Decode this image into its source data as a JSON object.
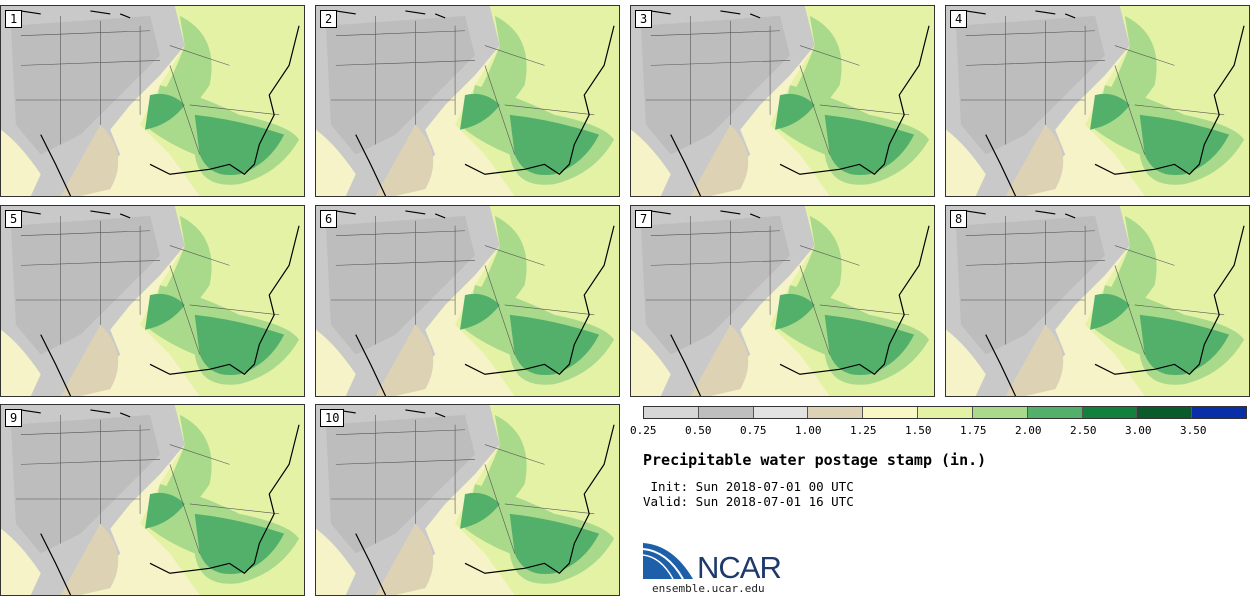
{
  "panels": [
    {
      "label": "1"
    },
    {
      "label": "2"
    },
    {
      "label": "3"
    },
    {
      "label": "4"
    },
    {
      "label": "5"
    },
    {
      "label": "6"
    },
    {
      "label": "7"
    },
    {
      "label": "8"
    },
    {
      "label": "9"
    },
    {
      "label": "10"
    }
  ],
  "legend": {
    "ticks": [
      "0.25",
      "0.50",
      "0.75",
      "1.00",
      "1.25",
      "1.50",
      "1.75",
      "2.00",
      "2.50",
      "3.00",
      "3.50"
    ],
    "colors": [
      "#d6d6d6",
      "#bebebe",
      "#e2e2e2",
      "#ddd2b4",
      "#f9f7c6",
      "#e4f2a6",
      "#a9d98a",
      "#52b06a",
      "#12813b",
      "#0b5a2a",
      "#0a2ea8"
    ]
  },
  "title": "Precipitable water postage stamp (in.)",
  "init": " Init: Sun 2018-07-01 00 UTC",
  "valid": "Valid: Sun 2018-07-01 16 UTC",
  "logo": {
    "text": "NCAR",
    "site": "ensemble.ucar.edu"
  },
  "colors": {
    "background": "#ffffff",
    "logo_blue": "#1d5fa8",
    "logo_dark": "#1d3a6b"
  }
}
